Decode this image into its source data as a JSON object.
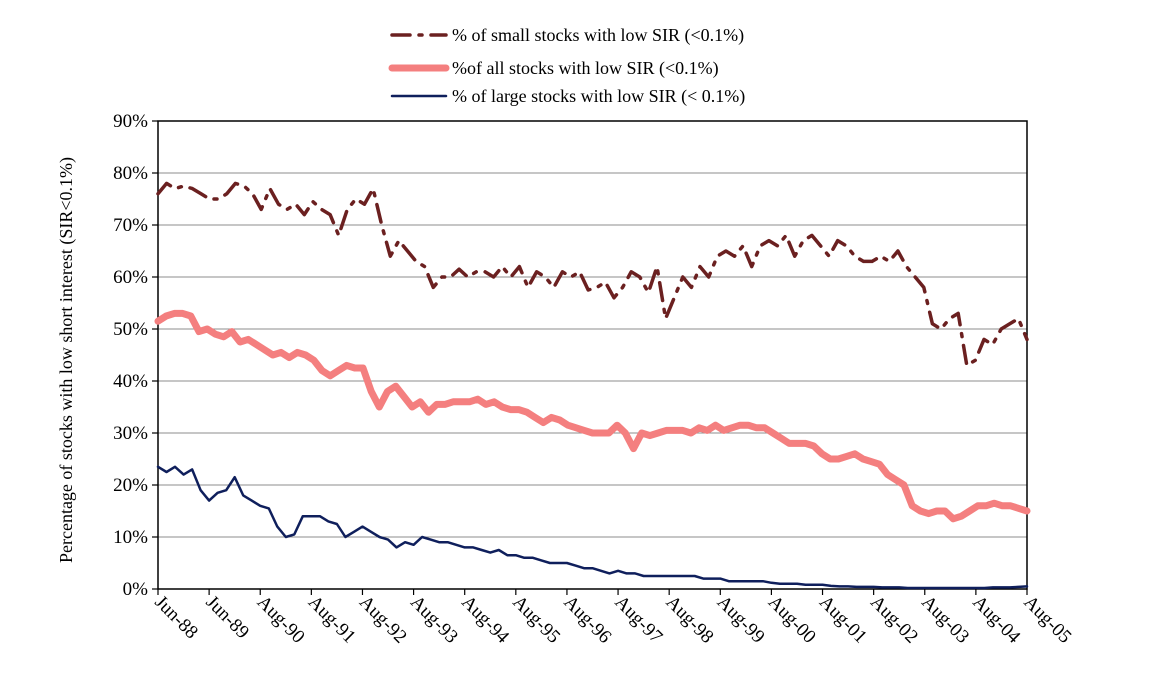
{
  "chart_data": {
    "type": "line",
    "ylabel": "Percentage of stocks with low short interest (SIR<0.1%)",
    "y_ticks": [
      "0%",
      "10%",
      "20%",
      "30%",
      "40%",
      "50%",
      "60%",
      "70%",
      "80%",
      "90%"
    ],
    "ylim": [
      0,
      90
    ],
    "x_ticks": [
      "Jun-88",
      "Jun-89",
      "Aug-90",
      "Aug-91",
      "Aug-92",
      "Aug-93",
      "Aug-94",
      "Aug-95",
      "Aug-96",
      "Aug-97",
      "Aug-98",
      "Aug-99",
      "Aug-00",
      "Aug-01",
      "Aug-02",
      "Aug-03",
      "Aug-04",
      "Aug-05"
    ],
    "grid": "horizontal",
    "legend": "top-center",
    "series": [
      {
        "name": "% of small stocks with low SIR (<0.1%)",
        "color": "#6b2020",
        "style": "dash-dot",
        "values": [
          76,
          78,
          77,
          77.5,
          77,
          76,
          75,
          75,
          76,
          78,
          77.5,
          76,
          73,
          77,
          74,
          73,
          74,
          72,
          74.5,
          73,
          72,
          68,
          73,
          75,
          74,
          77,
          70,
          64,
          67,
          65,
          63,
          62,
          58,
          60,
          60,
          61.5,
          60,
          61,
          61,
          60,
          62,
          60,
          62,
          58,
          61,
          60,
          58,
          61,
          60,
          61,
          57.5,
          58,
          59,
          56,
          58,
          61,
          60,
          57,
          62,
          52,
          56,
          60,
          58,
          62,
          60,
          64,
          65,
          64,
          66,
          62,
          66,
          67,
          66,
          68,
          64,
          67,
          68,
          66,
          64,
          67,
          66,
          64,
          63,
          63,
          64,
          63,
          65,
          62,
          60,
          58,
          51,
          50,
          52,
          53,
          43,
          44,
          48,
          47,
          50,
          51,
          52,
          48
        ]
      },
      {
        "name": "%of all stocks with low SIR (<0.1%)",
        "color": "#f47f7f",
        "style": "thick",
        "values": [
          51.5,
          52.5,
          53,
          53,
          52.5,
          49.5,
          50,
          49,
          48.5,
          49.5,
          47.5,
          48,
          47,
          46,
          45,
          45.5,
          44.5,
          45.5,
          45,
          44,
          42,
          41,
          42,
          43,
          42.5,
          42.5,
          38,
          35,
          38,
          39,
          37,
          35,
          36,
          34,
          35.5,
          35.5,
          36,
          36,
          36,
          36.5,
          35.5,
          36,
          35,
          34.5,
          34.5,
          34,
          33,
          32,
          33,
          32.5,
          31.5,
          31,
          30.5,
          30,
          30,
          30,
          31.5,
          30,
          27,
          30,
          29.5,
          30,
          30.5,
          30.5,
          30.5,
          30,
          31,
          30.5,
          31.5,
          30.5,
          31,
          31.5,
          31.5,
          31,
          31,
          30,
          29,
          28,
          28,
          28,
          27.5,
          26,
          25,
          25,
          25.5,
          26,
          25,
          24.5,
          24,
          22,
          21,
          20,
          16,
          15,
          14.5,
          15,
          15,
          13.5,
          14,
          15,
          16,
          16,
          16.5,
          16,
          16,
          15.5,
          15
        ]
      },
      {
        "name": "% of large stocks with low SIR (< 0.1%)",
        "color": "#0f1f5c",
        "style": "solid",
        "values": [
          23.5,
          22.5,
          23.5,
          22,
          23,
          19,
          17,
          18.5,
          19,
          21.5,
          18,
          17,
          16,
          15.5,
          12,
          10,
          10.5,
          14,
          14,
          14,
          13,
          12.5,
          10,
          11,
          12,
          11,
          10,
          9.5,
          8,
          9,
          8.5,
          10,
          9.5,
          9,
          9,
          8.5,
          8,
          8,
          7.5,
          7,
          7.5,
          6.5,
          6.5,
          6,
          6,
          5.5,
          5,
          5,
          5,
          4.5,
          4,
          4,
          3.5,
          3,
          3.5,
          3,
          3,
          2.5,
          2.5,
          2.5,
          2.5,
          2.5,
          2.5,
          2.5,
          2,
          2,
          2,
          1.5,
          1.5,
          1.5,
          1.5,
          1.5,
          1.2,
          1,
          1,
          1,
          0.8,
          0.8,
          0.8,
          0.6,
          0.5,
          0.5,
          0.4,
          0.4,
          0.4,
          0.3,
          0.3,
          0.3,
          0.2,
          0.2,
          0.2,
          0.2,
          0.2,
          0.2,
          0.2,
          0.2,
          0.2,
          0.2,
          0.3,
          0.3,
          0.3,
          0.4,
          0.5
        ]
      }
    ]
  }
}
